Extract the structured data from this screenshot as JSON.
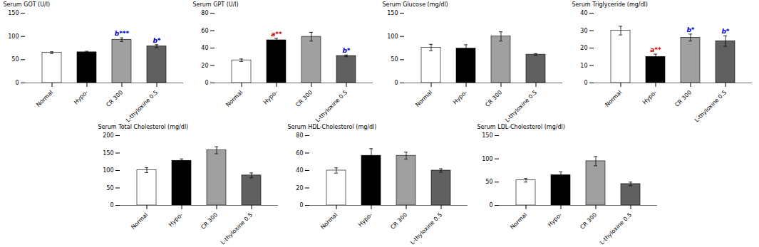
{
  "chart_data": [
    {
      "type": "bar",
      "ylabel": "Serum GOT (U/l)",
      "ylim": [
        0,
        150
      ],
      "yticks": [
        0,
        50,
        100,
        150
      ],
      "categories": [
        "Normal",
        "Hypo-",
        "CR 300",
        "L-thyloxine 0.5"
      ],
      "values": [
        65,
        66,
        93,
        79
      ],
      "errors": [
        2,
        2,
        4,
        3
      ],
      "colors": [
        "white",
        "black",
        "#a0a0a0",
        "#606060"
      ],
      "annotations": [
        {
          "category": "CR 300",
          "text": "b***",
          "color": "#0000cc"
        },
        {
          "category": "L-thyloxine 0.5",
          "text": "b*",
          "color": "#0000cc"
        }
      ]
    },
    {
      "type": "bar",
      "ylabel": "Serum GPT (U/l)",
      "ylim": [
        0,
        80
      ],
      "yticks": [
        0,
        20,
        40,
        60,
        80
      ],
      "categories": [
        "Normal",
        "Hypo-",
        "CR 300",
        "L-thyloxine 0.5"
      ],
      "values": [
        26,
        49,
        53,
        31
      ],
      "errors": [
        1.5,
        2,
        5,
        1
      ],
      "colors": [
        "white",
        "black",
        "#a0a0a0",
        "#606060"
      ],
      "annotations": [
        {
          "category": "Hypo-",
          "text": "a**",
          "color": "#cc0000"
        },
        {
          "category": "L-thyloxine 0.5",
          "text": "b*",
          "color": "#0000cc"
        }
      ]
    },
    {
      "type": "bar",
      "ylabel": "Serum Glucose (mg/dl)",
      "ylim": [
        0,
        150
      ],
      "yticks": [
        0,
        50,
        100,
        150
      ],
      "categories": [
        "Normal",
        "Hypo-",
        "CR 300",
        "L-thyloxine 0.5"
      ],
      "values": [
        76,
        74,
        100,
        61
      ],
      "errors": [
        7,
        8,
        10,
        2
      ],
      "colors": [
        "white",
        "black",
        "#a0a0a0",
        "#606060"
      ],
      "annotations": []
    },
    {
      "type": "bar",
      "ylabel": "Serum Triglyceride (mg/dl)",
      "ylim": [
        0,
        40
      ],
      "yticks": [
        0,
        10,
        20,
        30,
        40
      ],
      "categories": [
        "Normal",
        "Hypo-",
        "CR 300",
        "L-thyloxine 0.5"
      ],
      "values": [
        30,
        15,
        26,
        24
      ],
      "errors": [
        2.5,
        1.5,
        2,
        3
      ],
      "colors": [
        "white",
        "black",
        "#a0a0a0",
        "#606060"
      ],
      "annotations": [
        {
          "category": "Hypo-",
          "text": "a**",
          "color": "#cc0000"
        },
        {
          "category": "CR 300",
          "text": "b*",
          "color": "#0000cc"
        },
        {
          "category": "L-thyloxine 0.5",
          "text": "b*",
          "color": "#0000cc"
        }
      ]
    },
    {
      "type": "bar",
      "ylabel": "Serum Total Cholesterol (mg/dl)",
      "ylim": [
        0,
        200
      ],
      "yticks": [
        0,
        50,
        100,
        150,
        200
      ],
      "categories": [
        "Normal",
        "Hypo-",
        "CR 300",
        "L-thyloxine 0.5"
      ],
      "values": [
        101,
        128,
        158,
        86
      ],
      "errors": [
        7,
        5,
        10,
        7
      ],
      "colors": [
        "white",
        "black",
        "#a0a0a0",
        "#606060"
      ],
      "annotations": []
    },
    {
      "type": "bar",
      "ylabel": "Serum HDL-Cholesterol (mg/dl)",
      "ylim": [
        0,
        80
      ],
      "yticks": [
        0,
        20,
        40,
        60,
        80
      ],
      "categories": [
        "Normal",
        "Hypo-",
        "CR 300",
        "L-thyloxine 0.5"
      ],
      "values": [
        40,
        57,
        57,
        40
      ],
      "errors": [
        3,
        8,
        4,
        2
      ],
      "colors": [
        "white",
        "black",
        "#a0a0a0",
        "#606060"
      ],
      "annotations": []
    },
    {
      "type": "bar",
      "ylabel": "Serum LDL-Cholesterol (mg/dl)",
      "ylim": [
        0,
        150
      ],
      "yticks": [
        0,
        50,
        100,
        150
      ],
      "categories": [
        "Normal",
        "Hypo-",
        "CR 300",
        "L-thyloxine 0.5"
      ],
      "values": [
        54,
        65,
        95,
        46
      ],
      "errors": [
        4,
        7,
        10,
        4
      ],
      "colors": [
        "white",
        "black",
        "#a0a0a0",
        "#606060"
      ],
      "annotations": []
    }
  ]
}
